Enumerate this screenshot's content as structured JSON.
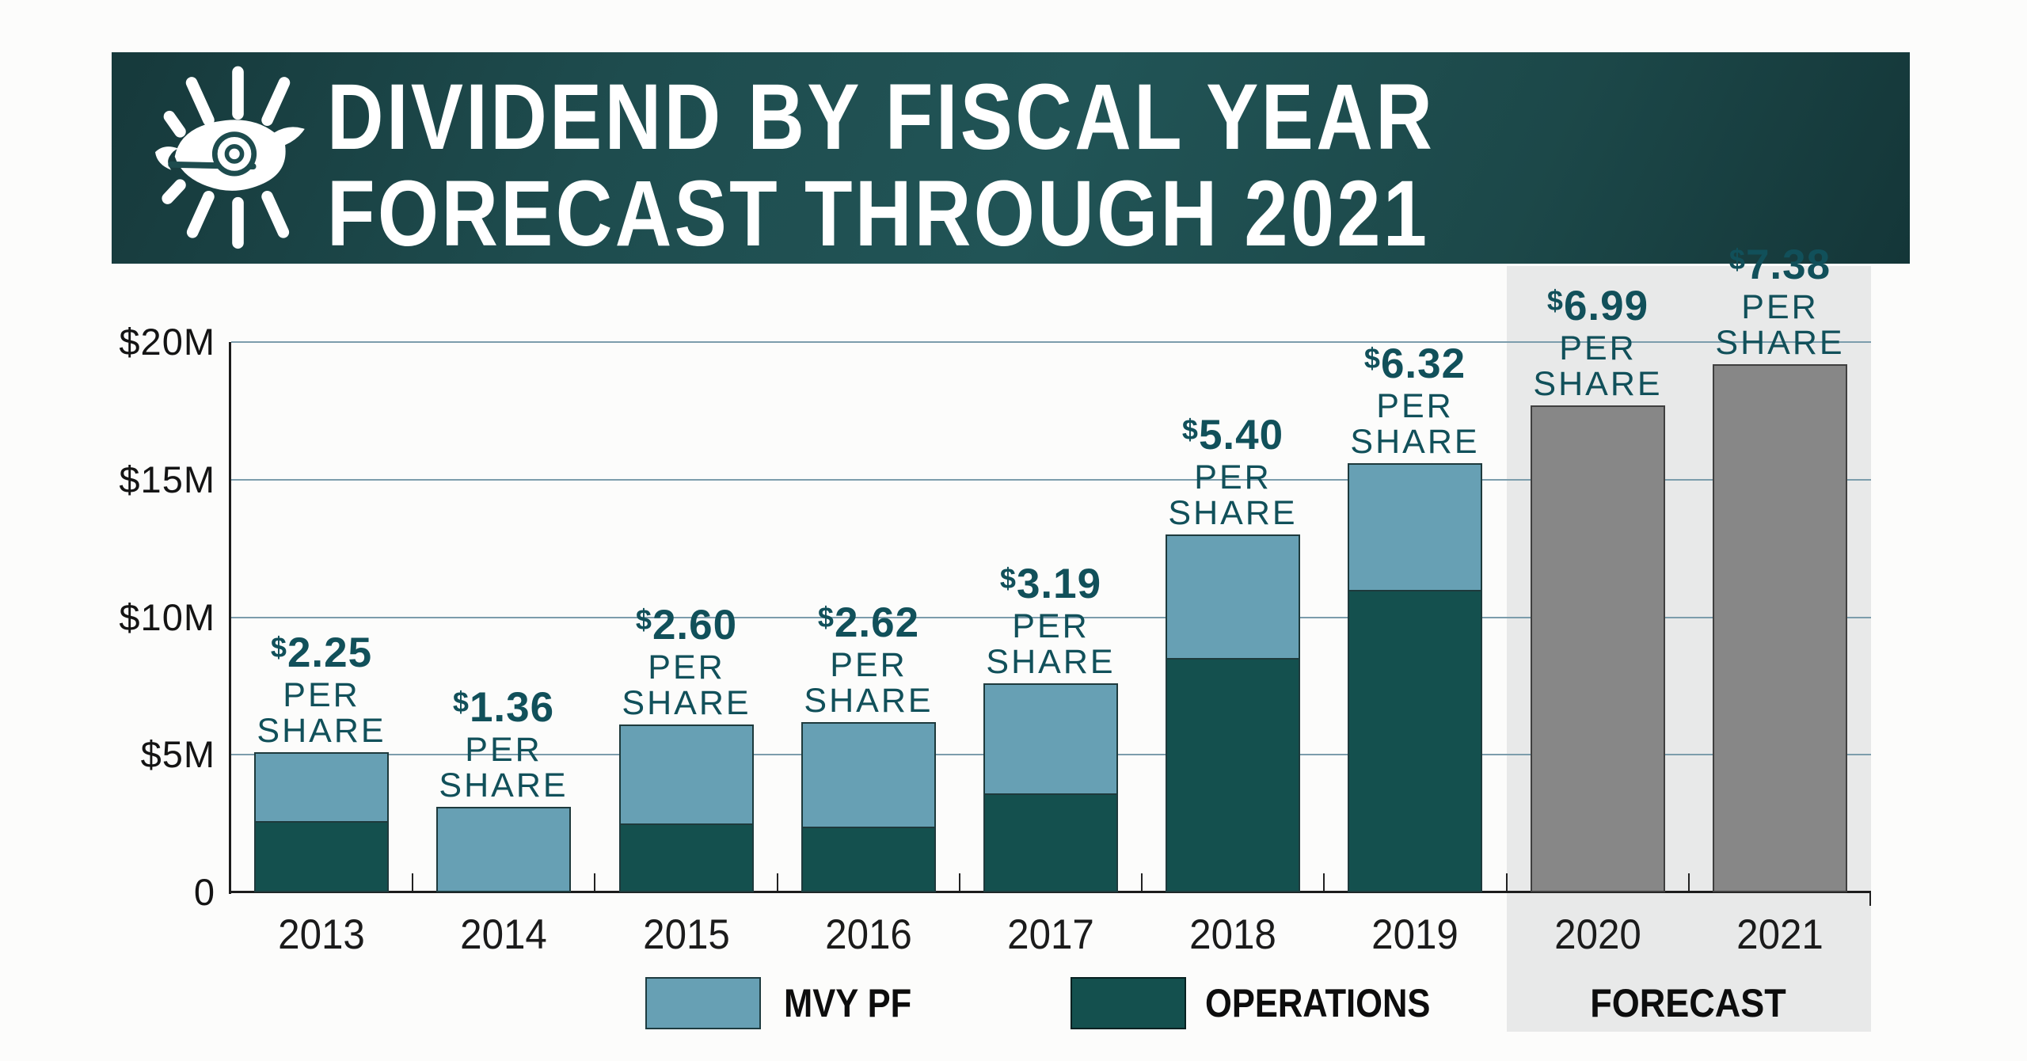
{
  "page": {
    "background": "#fcfcfb"
  },
  "header": {
    "logo": "eagle-eye-logo",
    "title_line1": "DIVIDEND BY FISCAL YEAR",
    "title_line2_accent": "FORECAST",
    "title_line2_rest": " THROUGH 2021",
    "banner_color": "#1d4c4e",
    "accent_color": "#8bb5c2"
  },
  "chart_data": {
    "type": "bar",
    "stacked": true,
    "title": "DIVIDEND BY FISCAL YEAR — FORECAST THROUGH 2021",
    "xlabel": "",
    "ylabel": "",
    "ylim": [
      0,
      20
    ],
    "grid": "horizontal",
    "legend_position": "bottom",
    "categories": [
      "2013",
      "2014",
      "2015",
      "2016",
      "2017",
      "2018",
      "2019",
      "2020",
      "2021"
    ],
    "series": [
      {
        "name": "MVY PF",
        "color": "#67a0b4",
        "values": [
          2.5,
          3.1,
          3.6,
          3.8,
          4.0,
          4.5,
          4.6,
          0,
          0
        ]
      },
      {
        "name": "OPERATIONS",
        "color": "#14504e",
        "values": [
          2.6,
          0,
          2.5,
          2.4,
          3.6,
          8.5,
          11.0,
          0,
          0
        ]
      },
      {
        "name": "FORECAST",
        "color": "#878787",
        "values": [
          0,
          0,
          0,
          0,
          0,
          0,
          0,
          17.7,
          19.2
        ]
      }
    ],
    "totals_musd": [
      5.1,
      3.1,
      6.1,
      6.2,
      7.6,
      13.0,
      15.6,
      17.7,
      19.2
    ],
    "per_share_labels": [
      "$2.25",
      "$1.36",
      "$2.60",
      "$2.62",
      "$3.19",
      "$5.40",
      "$6.32",
      "$6.99",
      "$7.38"
    ],
    "per_share_sublabel_lines": [
      "PER",
      "SHARE"
    ],
    "y_axis": {
      "max": 20,
      "ticks": [
        {
          "value": 20,
          "label": "$20M"
        },
        {
          "value": 15,
          "label": "$15M"
        },
        {
          "value": 10,
          "label": "$10M"
        },
        {
          "value": 5,
          "label": "$5M"
        },
        {
          "value": 0,
          "label": "0"
        }
      ]
    },
    "forecast": {
      "start_category": "2020",
      "band_color": "#e8e9e9",
      "bar_color": "#878787",
      "label": "FORECAST"
    }
  },
  "legend": {
    "items": [
      {
        "label": "MVY PF",
        "color": "#67a0b4"
      },
      {
        "label": "OPERATIONS",
        "color": "#14504e"
      }
    ],
    "forecast_label": "FORECAST"
  },
  "colors": {
    "mvy_pf": "#67a0b4",
    "operations": "#14504e",
    "forecast_bar": "#878787",
    "forecast_band": "#e8e9e9",
    "gridline": "#7c9dac",
    "axis": "#1c1c1c",
    "per_share_text": "#11505a",
    "banner": "#1d4c4e",
    "title_accent": "#8bb5c2"
  }
}
